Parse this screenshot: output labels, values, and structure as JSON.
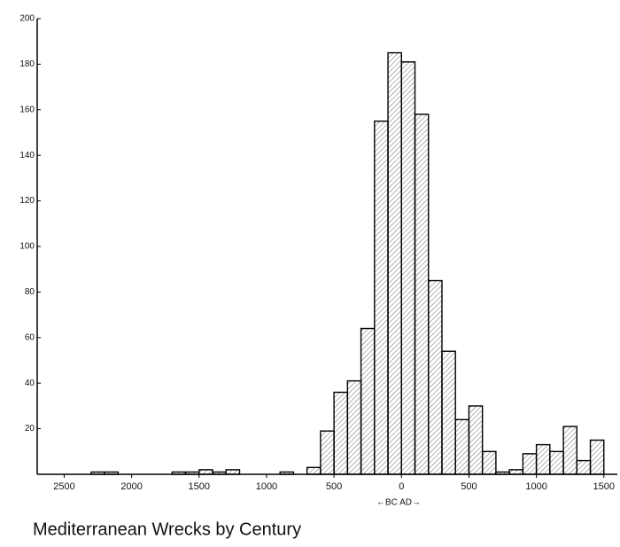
{
  "chart_data": {
    "type": "histogram",
    "title": "Mediterranean Wrecks by Century",
    "x_label": "←BC AD→",
    "bins": [
      -2300,
      -2200,
      -2100,
      -2000,
      -1900,
      -1800,
      -1700,
      -1600,
      -1500,
      -1400,
      -1300,
      -1200,
      -1100,
      -1000,
      -900,
      -800,
      -700,
      -600,
      -500,
      -400,
      -300,
      -200,
      -100,
      0,
      100,
      200,
      300,
      400,
      500,
      600,
      700,
      800,
      900,
      1000,
      1100,
      1200,
      1300,
      1400,
      1500
    ],
    "values": [
      1,
      1,
      0,
      0,
      0,
      0,
      1,
      1,
      2,
      1,
      2,
      0,
      0,
      0,
      1,
      0,
      3,
      19,
      36,
      41,
      64,
      155,
      185,
      181,
      158,
      85,
      54,
      24,
      30,
      10,
      1,
      2,
      9,
      13,
      10,
      21,
      6,
      15
    ],
    "color": "#000000",
    "xlim": [
      -2700,
      1600
    ],
    "xticks": [
      {
        "value": -2500,
        "label": "2500"
      },
      {
        "value": -2000,
        "label": "2000"
      },
      {
        "value": -1500,
        "label": "1500"
      },
      {
        "value": -1000,
        "label": "1000"
      },
      {
        "value": -500,
        "label": "500"
      },
      0,
      500,
      1000,
      1500
    ],
    "ylim": [
      0,
      200
    ],
    "yticks": [
      20,
      40,
      60,
      80,
      100,
      120,
      140,
      160,
      180,
      200
    ],
    "grid": false
  }
}
